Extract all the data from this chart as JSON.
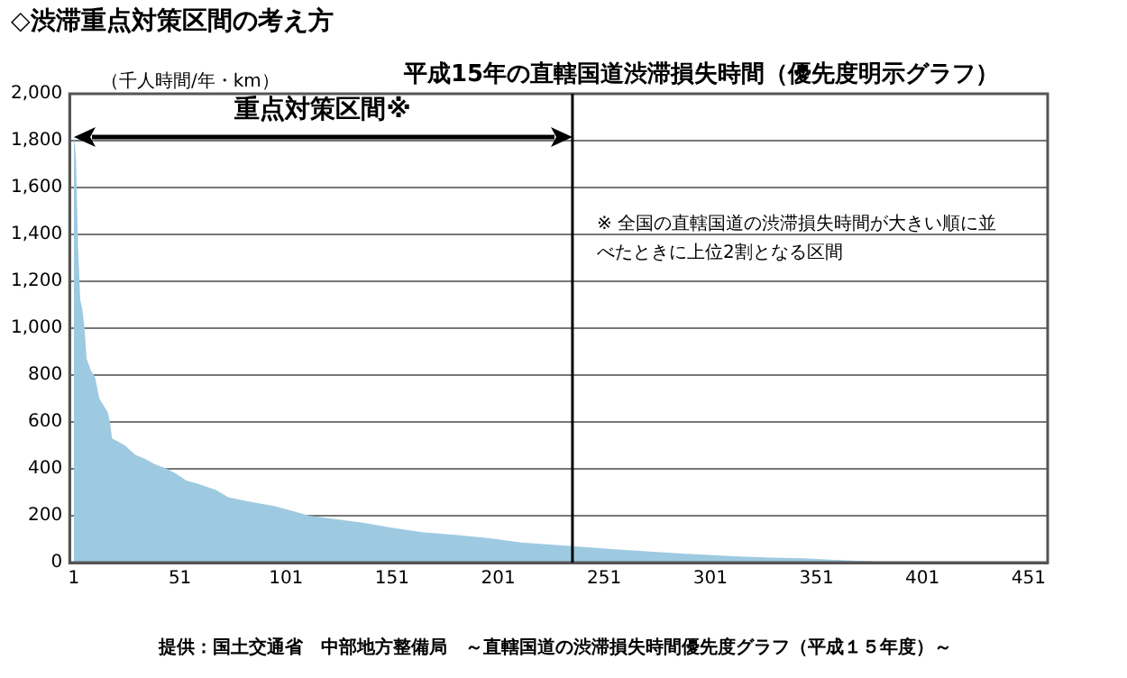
{
  "chart_data": {
    "type": "area",
    "title": "◇渋滞重点対策区間の考え方",
    "subtitle": "平成15年の直轄国道渋滞損失時間（優先度明示グラフ）",
    "ylabel": "（千人時間/年・km）",
    "x": [
      1,
      2,
      3,
      4,
      5,
      6,
      7,
      9,
      11,
      13,
      15,
      17,
      18,
      19,
      22,
      25,
      30,
      35,
      39,
      45,
      49,
      54,
      60,
      68,
      74,
      83,
      90,
      95,
      101,
      112,
      125,
      138,
      150,
      165,
      182,
      197,
      212,
      236,
      256,
      286,
      315,
      330,
      345,
      360,
      375,
      388
    ],
    "series": [
      {
        "color": "#9ecae1",
        "values": [
          1830,
          1720,
          1340,
          1120,
          1080,
          1000,
          870,
          820,
          790,
          700,
          670,
          640,
          600,
          530,
          515,
          500,
          460,
          440,
          420,
          400,
          380,
          350,
          335,
          310,
          278,
          262,
          250,
          242,
          228,
          200,
          185,
          169,
          150,
          130,
          117,
          104,
          86,
          70,
          57,
          39,
          26,
          21,
          18,
          12,
          6,
          2
        ]
      }
    ],
    "xlim": [
      -1,
      460
    ],
    "xticks": [
      1,
      51,
      101,
      151,
      201,
      251,
      301,
      351,
      401,
      451
    ],
    "ylim": [
      0,
      2000
    ],
    "yticks": [
      0,
      200,
      400,
      600,
      800,
      {
        "value": 1000,
        "label": "1,000"
      },
      {
        "value": 1200,
        "label": "1,200"
      },
      {
        "value": 1400,
        "label": "1,400"
      },
      {
        "value": 1600,
        "label": "1,600"
      },
      {
        "value": 1800,
        "label": "1,800"
      },
      {
        "value": 2000,
        "label": "2,000"
      }
    ],
    "grid": "y",
    "legend": false,
    "ref_lines": [
      {
        "axis": "x",
        "value": 236,
        "color": "#000000"
      }
    ],
    "annotations": [
      "重点対策区間※",
      "※ 全国の直轄国道の渋滞損失時間が大きい順に並べたときに上位2割となる区間",
      "提供：国土交通省　中部地方整備局　～直轄国道の渋滞損失時間優先度グラフ（平成１５年度）～"
    ]
  }
}
